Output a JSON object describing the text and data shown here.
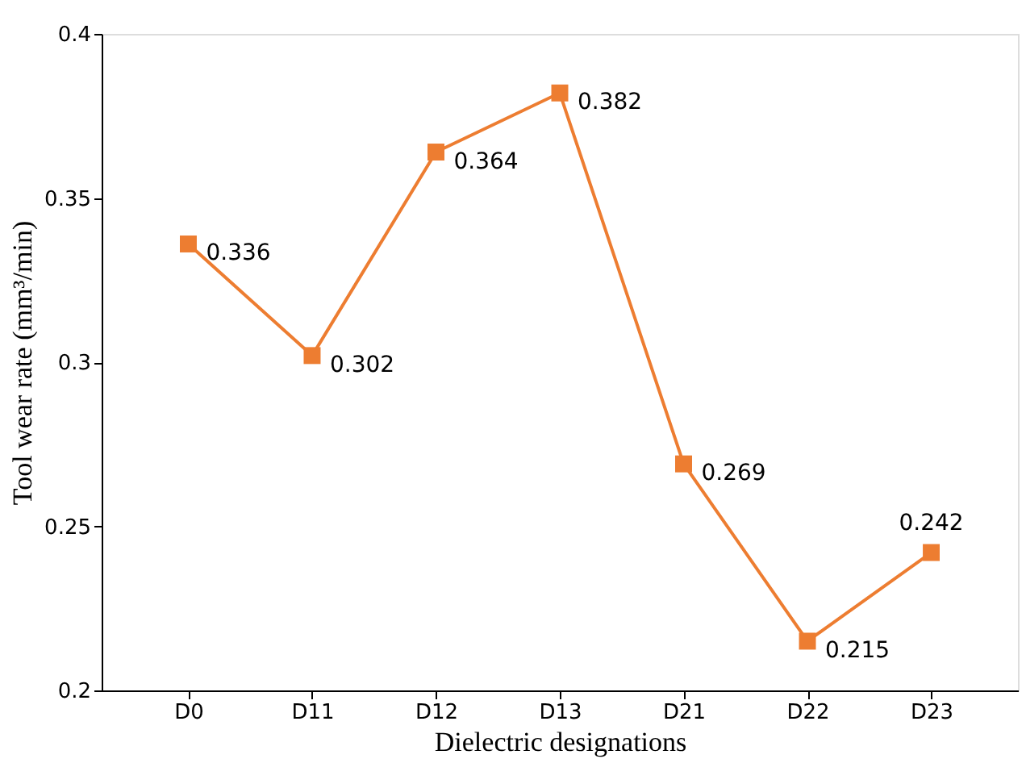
{
  "chart_data": {
    "type": "line",
    "xlabel": "Dielectric designations",
    "ylabel": "Tool wear rate (mm³/min)",
    "categories": [
      "D0",
      "D11",
      "D12",
      "D13",
      "D21",
      "D22",
      "D23"
    ],
    "series": [
      {
        "color": "#ed7d31",
        "values": [
          0.336,
          0.302,
          0.364,
          0.382,
          0.269,
          0.215,
          0.242
        ]
      }
    ],
    "ylim": [
      0.2,
      0.4
    ],
    "yticks": [
      0.2,
      0.25,
      0.3,
      0.35,
      0.4
    ],
    "grid": false,
    "marker": "square",
    "line_style": "solid",
    "data_labels": true
  }
}
